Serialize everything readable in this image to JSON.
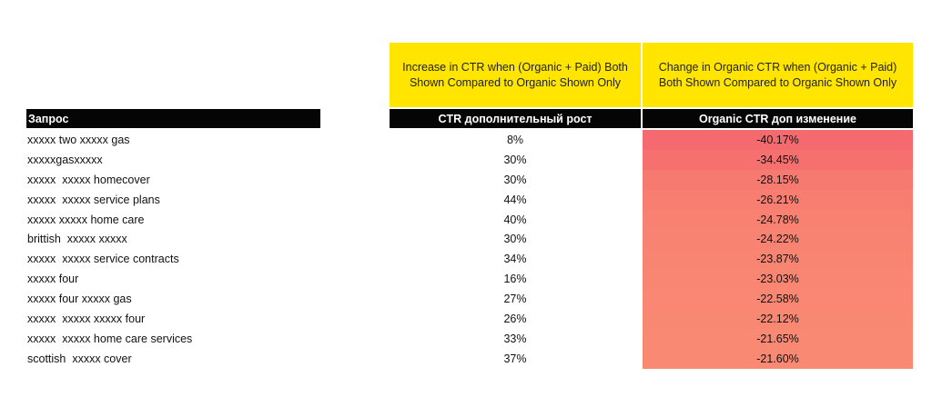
{
  "headers": {
    "increase_desc": [
      "Increase in CTR when (Organic + Paid) Both",
      "Shown Compared to Organic Shown Only"
    ],
    "change_desc": [
      "Change in Organic CTR when (Organic + Paid)",
      "Both Shown Compared to Organic Shown Only"
    ],
    "col_query": "Запрос",
    "col_ctr": "CTR дополнительный рост",
    "col_organic": "Organic CTR доп изменение"
  },
  "rows": [
    {
      "query": "xxxxx two xxxxx gas",
      "ctr": "8%",
      "organic": "-40.17%",
      "color": "#f56a6e"
    },
    {
      "query": "xxxxxgasxxxxx",
      "ctr": "30%",
      "organic": "-34.45%",
      "color": "#f6706f"
    },
    {
      "query": "xxxxx  xxxxx homecover",
      "ctr": "30%",
      "organic": "-28.15%",
      "color": "#f77a70"
    },
    {
      "query": "xxxxx  xxxxx service plans",
      "ctr": "44%",
      "organic": "-26.21%",
      "color": "#f77e71"
    },
    {
      "query": "xxxxx xxxxx home care",
      "ctr": "40%",
      "organic": "-24.78%",
      "color": "#f88171"
    },
    {
      "query": "brittish  xxxxx xxxxx",
      "ctr": "30%",
      "organic": "-24.22%",
      "color": "#f88372"
    },
    {
      "query": "xxxxx  xxxxx service contracts",
      "ctr": "34%",
      "organic": "-23.87%",
      "color": "#f88472"
    },
    {
      "query": "xxxxx four",
      "ctr": "16%",
      "organic": "-23.03%",
      "color": "#f98672"
    },
    {
      "query": "xxxxx four xxxxx gas",
      "ctr": "27%",
      "organic": "-22.58%",
      "color": "#f98773"
    },
    {
      "query": "xxxxx  xxxxx xxxxx four",
      "ctr": "26%",
      "organic": "-22.12%",
      "color": "#f98873"
    },
    {
      "query": "xxxxx  xxxxx home care services",
      "ctr": "33%",
      "organic": "-21.65%",
      "color": "#f98973"
    },
    {
      "query": "scottish  xxxxx cover",
      "ctr": "37%",
      "organic": "-21.60%",
      "color": "#f98973"
    }
  ]
}
